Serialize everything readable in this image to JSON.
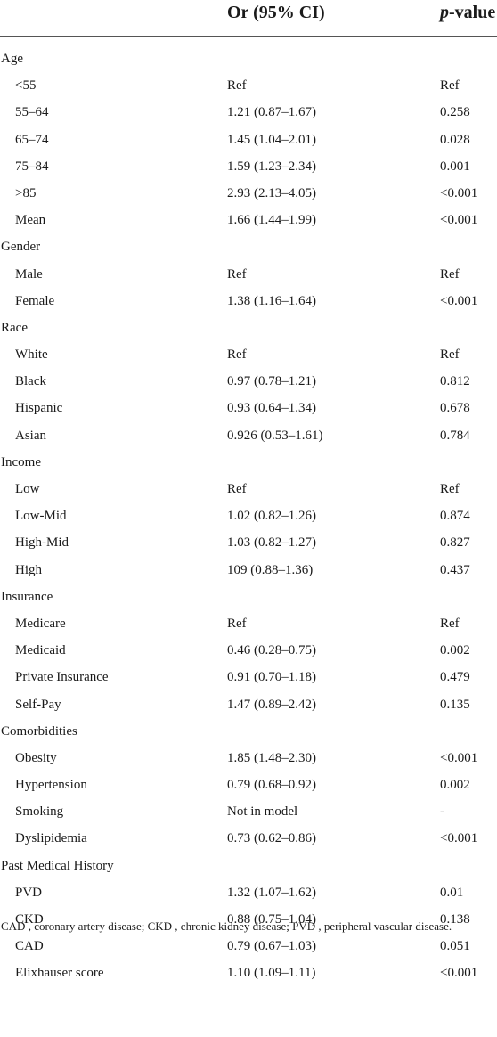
{
  "header": {
    "or_label": "Or (95% CI)",
    "pvalue_italic": "p",
    "pvalue_rest": "-value"
  },
  "rows": [
    {
      "type": "group",
      "label": "Age"
    },
    {
      "type": "sub",
      "label": "<55",
      "or": "Ref",
      "p": "Ref"
    },
    {
      "type": "sub",
      "label": "55–64",
      "or": "1.21 (0.87–1.67)",
      "p": "0.258"
    },
    {
      "type": "sub",
      "label": "65–74",
      "or": "1.45 (1.04–2.01)",
      "p": "0.028"
    },
    {
      "type": "sub",
      "label": "75–84",
      "or": "1.59 (1.23–2.34)",
      "p": "0.001"
    },
    {
      "type": "sub",
      "label": ">85",
      "or": "2.93 (2.13–4.05)",
      "p": "<0.001"
    },
    {
      "type": "sub",
      "label": "Mean",
      "or": "1.66 (1.44–1.99)",
      "p": "<0.001"
    },
    {
      "type": "group",
      "label": "Gender"
    },
    {
      "type": "sub",
      "label": "Male",
      "or": "Ref",
      "p": "Ref"
    },
    {
      "type": "sub",
      "label": "Female",
      "or": "1.38 (1.16–1.64)",
      "p": "<0.001"
    },
    {
      "type": "group",
      "label": "Race"
    },
    {
      "type": "sub",
      "label": "White",
      "or": "Ref",
      "p": "Ref"
    },
    {
      "type": "sub",
      "label": "Black",
      "or": "0.97 (0.78–1.21)",
      "p": "0.812"
    },
    {
      "type": "sub",
      "label": "Hispanic",
      "or": "0.93 (0.64–1.34)",
      "p": "0.678"
    },
    {
      "type": "sub",
      "label": "Asian",
      "or": "0.926 (0.53–1.61)",
      "p": "0.784"
    },
    {
      "type": "group",
      "label": "Income"
    },
    {
      "type": "sub",
      "label": "Low",
      "or": "Ref",
      "p": "Ref"
    },
    {
      "type": "sub",
      "label": "Low-Mid",
      "or": "1.02 (0.82–1.26)",
      "p": "0.874"
    },
    {
      "type": "sub",
      "label": "High-Mid",
      "or": "1.03 (0.82–1.27)",
      "p": "0.827"
    },
    {
      "type": "sub",
      "label": "High",
      "or": "109 (0.88–1.36)",
      "p": "0.437"
    },
    {
      "type": "group",
      "label": "Insurance"
    },
    {
      "type": "sub",
      "label": "Medicare",
      "or": "Ref",
      "p": "Ref"
    },
    {
      "type": "sub",
      "label": "Medicaid",
      "or": "0.46 (0.28–0.75)",
      "p": "0.002"
    },
    {
      "type": "sub",
      "label": "Private Insurance",
      "or": "0.91 (0.70–1.18)",
      "p": "0.479"
    },
    {
      "type": "sub",
      "label": "Self-Pay",
      "or": "1.47 (0.89–2.42)",
      "p": "0.135"
    },
    {
      "type": "group",
      "label": "Comorbidities"
    },
    {
      "type": "sub",
      "label": "Obesity",
      "or": "1.85 (1.48–2.30)",
      "p": "<0.001"
    },
    {
      "type": "sub",
      "label": "Hypertension",
      "or": "0.79 (0.68–0.92)",
      "p": "0.002"
    },
    {
      "type": "sub",
      "label": "Smoking",
      "or": "Not in model",
      "p": "-"
    },
    {
      "type": "sub",
      "label": "Dyslipidemia",
      "or": "0.73 (0.62–0.86)",
      "p": "<0.001"
    },
    {
      "type": "group",
      "label": "Past Medical History"
    },
    {
      "type": "sub",
      "label": "PVD",
      "or": "1.32 (1.07–1.62)",
      "p": "0.01"
    },
    {
      "type": "sub",
      "label": "CKD",
      "or": "0.88 (0.75–1.04)",
      "p": "0.138"
    },
    {
      "type": "sub",
      "label": "CAD",
      "or": "0.79 (0.67–1.03)",
      "p": "0.051"
    },
    {
      "type": "sub",
      "label": "Elixhauser score",
      "or": "1.10 (1.09–1.11)",
      "p": "<0.001"
    }
  ],
  "footnote": "CAD , coronary artery disease; CKD , chronic kidney disease; PVD , peripheral vascular disease."
}
